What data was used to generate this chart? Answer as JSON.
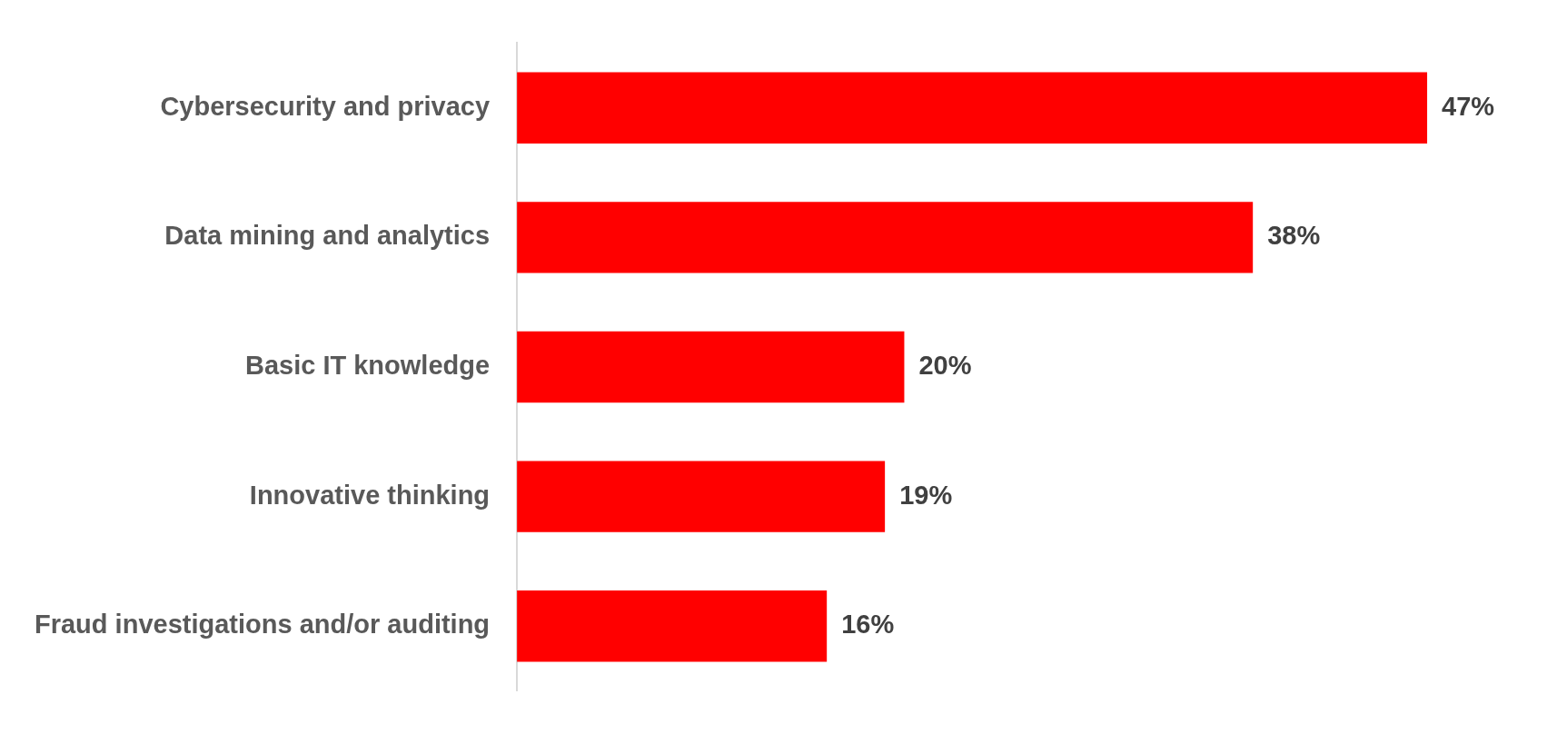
{
  "chart_data": {
    "type": "bar",
    "orientation": "horizontal",
    "categories": [
      "Cybersecurity and privacy",
      "Data mining and analytics",
      "Basic IT knowledge",
      "Innovative thinking",
      "Fraud investigations and/or auditing"
    ],
    "values": [
      47,
      38,
      20,
      19,
      16
    ],
    "value_labels": [
      "47%",
      "38%",
      "20%",
      "19%",
      "16%"
    ],
    "color": "#ff0000",
    "tick_labels": "y",
    "grid": false,
    "legend": false
  }
}
